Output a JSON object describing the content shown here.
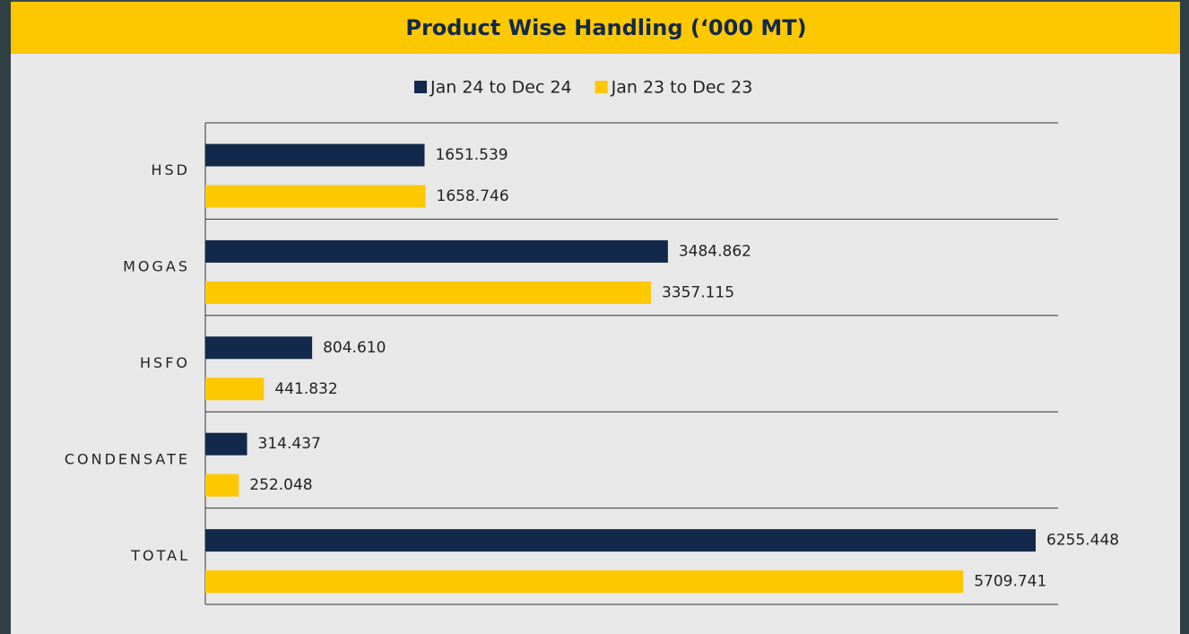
{
  "chart_data": {
    "type": "hbar",
    "title": "Product Wise Handling (‘000 MT)",
    "categories": [
      "HSD",
      "MOGAS",
      "HSFO",
      "CONDENSATE",
      "TOTAL"
    ],
    "series": [
      {
        "name": "Jan 24 to Dec 24",
        "color": "#13294b",
        "values": [
          1651.539,
          3484.862,
          804.61,
          314.437,
          6255.448
        ],
        "value_labels": [
          "1651.539",
          "3484.862",
          "804.610",
          "314.437",
          "6255.448"
        ]
      },
      {
        "name": "Jan 23 to Dec 23",
        "color": "#fdc800",
        "values": [
          1658.746,
          3357.115,
          441.832,
          252.048,
          5709.741
        ],
        "value_labels": [
          "1658.746",
          "3357.115",
          "441.832",
          "252.048",
          "5709.741"
        ]
      }
    ],
    "legend": "top"
  }
}
